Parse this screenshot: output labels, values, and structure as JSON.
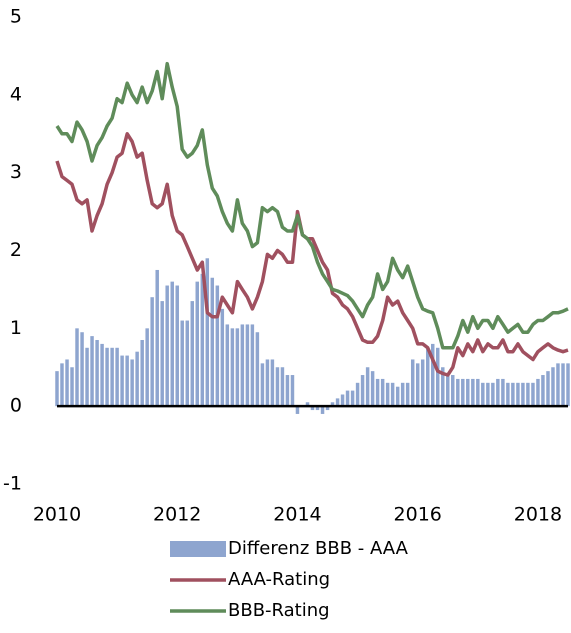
{
  "chart_data": {
    "type": "line",
    "x": [
      2010,
      2010.083,
      2010.167,
      2010.25,
      2010.333,
      2010.417,
      2010.5,
      2010.583,
      2010.667,
      2010.75,
      2010.833,
      2010.917,
      2011,
      2011.083,
      2011.167,
      2011.25,
      2011.333,
      2011.417,
      2011.5,
      2011.583,
      2011.667,
      2011.75,
      2011.833,
      2011.917,
      2012,
      2012.083,
      2012.167,
      2012.25,
      2012.333,
      2012.417,
      2012.5,
      2012.583,
      2012.667,
      2012.75,
      2012.833,
      2012.917,
      2013,
      2013.083,
      2013.167,
      2013.25,
      2013.333,
      2013.417,
      2013.5,
      2013.583,
      2013.667,
      2013.75,
      2013.833,
      2013.917,
      2014,
      2014.083,
      2014.167,
      2014.25,
      2014.333,
      2014.417,
      2014.5,
      2014.583,
      2014.667,
      2014.75,
      2014.833,
      2014.917,
      2015,
      2015.083,
      2015.167,
      2015.25,
      2015.333,
      2015.417,
      2015.5,
      2015.583,
      2015.667,
      2015.75,
      2015.833,
      2015.917,
      2016,
      2016.083,
      2016.167,
      2016.25,
      2016.333,
      2016.417,
      2016.5,
      2016.583,
      2016.667,
      2016.75,
      2016.833,
      2016.917,
      2017,
      2017.083,
      2017.167,
      2017.25,
      2017.333,
      2017.417,
      2017.5,
      2017.583,
      2017.667,
      2017.75,
      2017.833,
      2017.917,
      2018,
      2018.083,
      2018.167,
      2018.25,
      2018.333,
      2018.417,
      2018.5
    ],
    "series": [
      {
        "name": "Differenz BBB - AAA",
        "type": "bar",
        "color": "#8ea5cf",
        "values": [
          0.45,
          0.55,
          0.6,
          0.5,
          1.0,
          0.95,
          0.75,
          0.9,
          0.85,
          0.8,
          0.75,
          0.75,
          0.75,
          0.65,
          0.65,
          0.6,
          0.7,
          0.85,
          1.0,
          1.4,
          1.75,
          1.35,
          1.55,
          1.6,
          1.55,
          1.1,
          1.1,
          1.35,
          1.6,
          1.7,
          1.9,
          1.65,
          1.55,
          1.25,
          1.05,
          1.0,
          1.0,
          1.05,
          1.05,
          1.05,
          0.95,
          0.55,
          0.6,
          0.6,
          0.5,
          0.5,
          0.4,
          0.4,
          -0.1,
          0,
          0.05,
          -0.05,
          -0.05,
          -0.1,
          -0.05,
          0.05,
          0.1,
          0.15,
          0.2,
          0.2,
          0.3,
          0.4,
          0.5,
          0.45,
          0.35,
          0.35,
          0.3,
          0.3,
          0.25,
          0.3,
          0.3,
          0.6,
          0.55,
          0.6,
          0.75,
          0.8,
          0.75,
          0.5,
          0.4,
          0.4,
          0.35,
          0.35,
          0.35,
          0.35,
          0.35,
          0.3,
          0.3,
          0.3,
          0.35,
          0.35,
          0.3,
          0.3,
          0.3,
          0.3,
          0.3,
          0.3,
          0.35,
          0.4,
          0.45,
          0.5,
          0.55,
          0.55,
          0.55
        ]
      },
      {
        "name": "AAA-Rating",
        "type": "line",
        "color": "#a0505f",
        "values": [
          3.15,
          2.95,
          2.9,
          2.85,
          2.65,
          2.6,
          2.65,
          2.25,
          2.45,
          2.6,
          2.85,
          3.0,
          3.2,
          3.25,
          3.5,
          3.4,
          3.2,
          3.25,
          2.9,
          2.6,
          2.55,
          2.6,
          2.85,
          2.45,
          2.25,
          2.2,
          2.05,
          1.9,
          1.75,
          1.85,
          1.2,
          1.15,
          1.15,
          1.4,
          1.3,
          1.2,
          1.6,
          1.5,
          1.4,
          1.25,
          1.4,
          1.6,
          1.95,
          1.9,
          2.0,
          1.95,
          1.85,
          1.85,
          2.5,
          2.2,
          2.15,
          2.15,
          2.0,
          1.85,
          1.75,
          1.45,
          1.4,
          1.3,
          1.25,
          1.15,
          1.0,
          0.85,
          0.82,
          0.82,
          0.9,
          1.1,
          1.4,
          1.3,
          1.35,
          1.2,
          1.1,
          1.0,
          0.8,
          0.8,
          0.75,
          0.6,
          0.45,
          0.42,
          0.4,
          0.5,
          0.75,
          0.65,
          0.8,
          0.7,
          0.85,
          0.7,
          0.8,
          0.75,
          0.75,
          0.85,
          0.7,
          0.7,
          0.8,
          0.7,
          0.65,
          0.6,
          0.7,
          0.75,
          0.8,
          0.75,
          0.72,
          0.7,
          0.72
        ]
      },
      {
        "name": "BBB-Rating",
        "type": "line",
        "color": "#5f8c5a",
        "values": [
          3.6,
          3.5,
          3.5,
          3.4,
          3.65,
          3.55,
          3.4,
          3.15,
          3.35,
          3.45,
          3.6,
          3.7,
          3.95,
          3.9,
          4.15,
          4.0,
          3.9,
          4.1,
          3.9,
          4.05,
          4.3,
          3.95,
          4.4,
          4.1,
          3.85,
          3.3,
          3.2,
          3.25,
          3.35,
          3.55,
          3.1,
          2.8,
          2.7,
          2.5,
          2.35,
          2.25,
          2.65,
          2.35,
          2.25,
          2.05,
          2.1,
          2.55,
          2.5,
          2.55,
          2.5,
          2.3,
          2.25,
          2.25,
          2.45,
          2.2,
          2.15,
          2.05,
          1.85,
          1.7,
          1.6,
          1.5,
          1.48,
          1.45,
          1.42,
          1.35,
          1.25,
          1.15,
          1.3,
          1.4,
          1.7,
          1.5,
          1.6,
          1.9,
          1.75,
          1.65,
          1.8,
          1.6,
          1.4,
          1.25,
          1.22,
          1.2,
          1.0,
          0.75,
          0.75,
          0.75,
          0.9,
          1.1,
          0.95,
          1.15,
          1.0,
          1.1,
          1.1,
          1.0,
          1.15,
          1.05,
          0.95,
          1.0,
          1.05,
          0.95,
          0.95,
          1.05,
          1.1,
          1.1,
          1.15,
          1.2,
          1.2,
          1.22,
          1.25
        ]
      }
    ],
    "xlim": [
      2010,
      2018.5
    ],
    "xticks": [
      2010,
      2012,
      2014,
      2016,
      2018
    ],
    "ylim": [
      -1,
      5
    ],
    "yticks": [
      -1,
      0,
      1,
      2,
      3,
      4,
      5
    ],
    "grid": false
  }
}
